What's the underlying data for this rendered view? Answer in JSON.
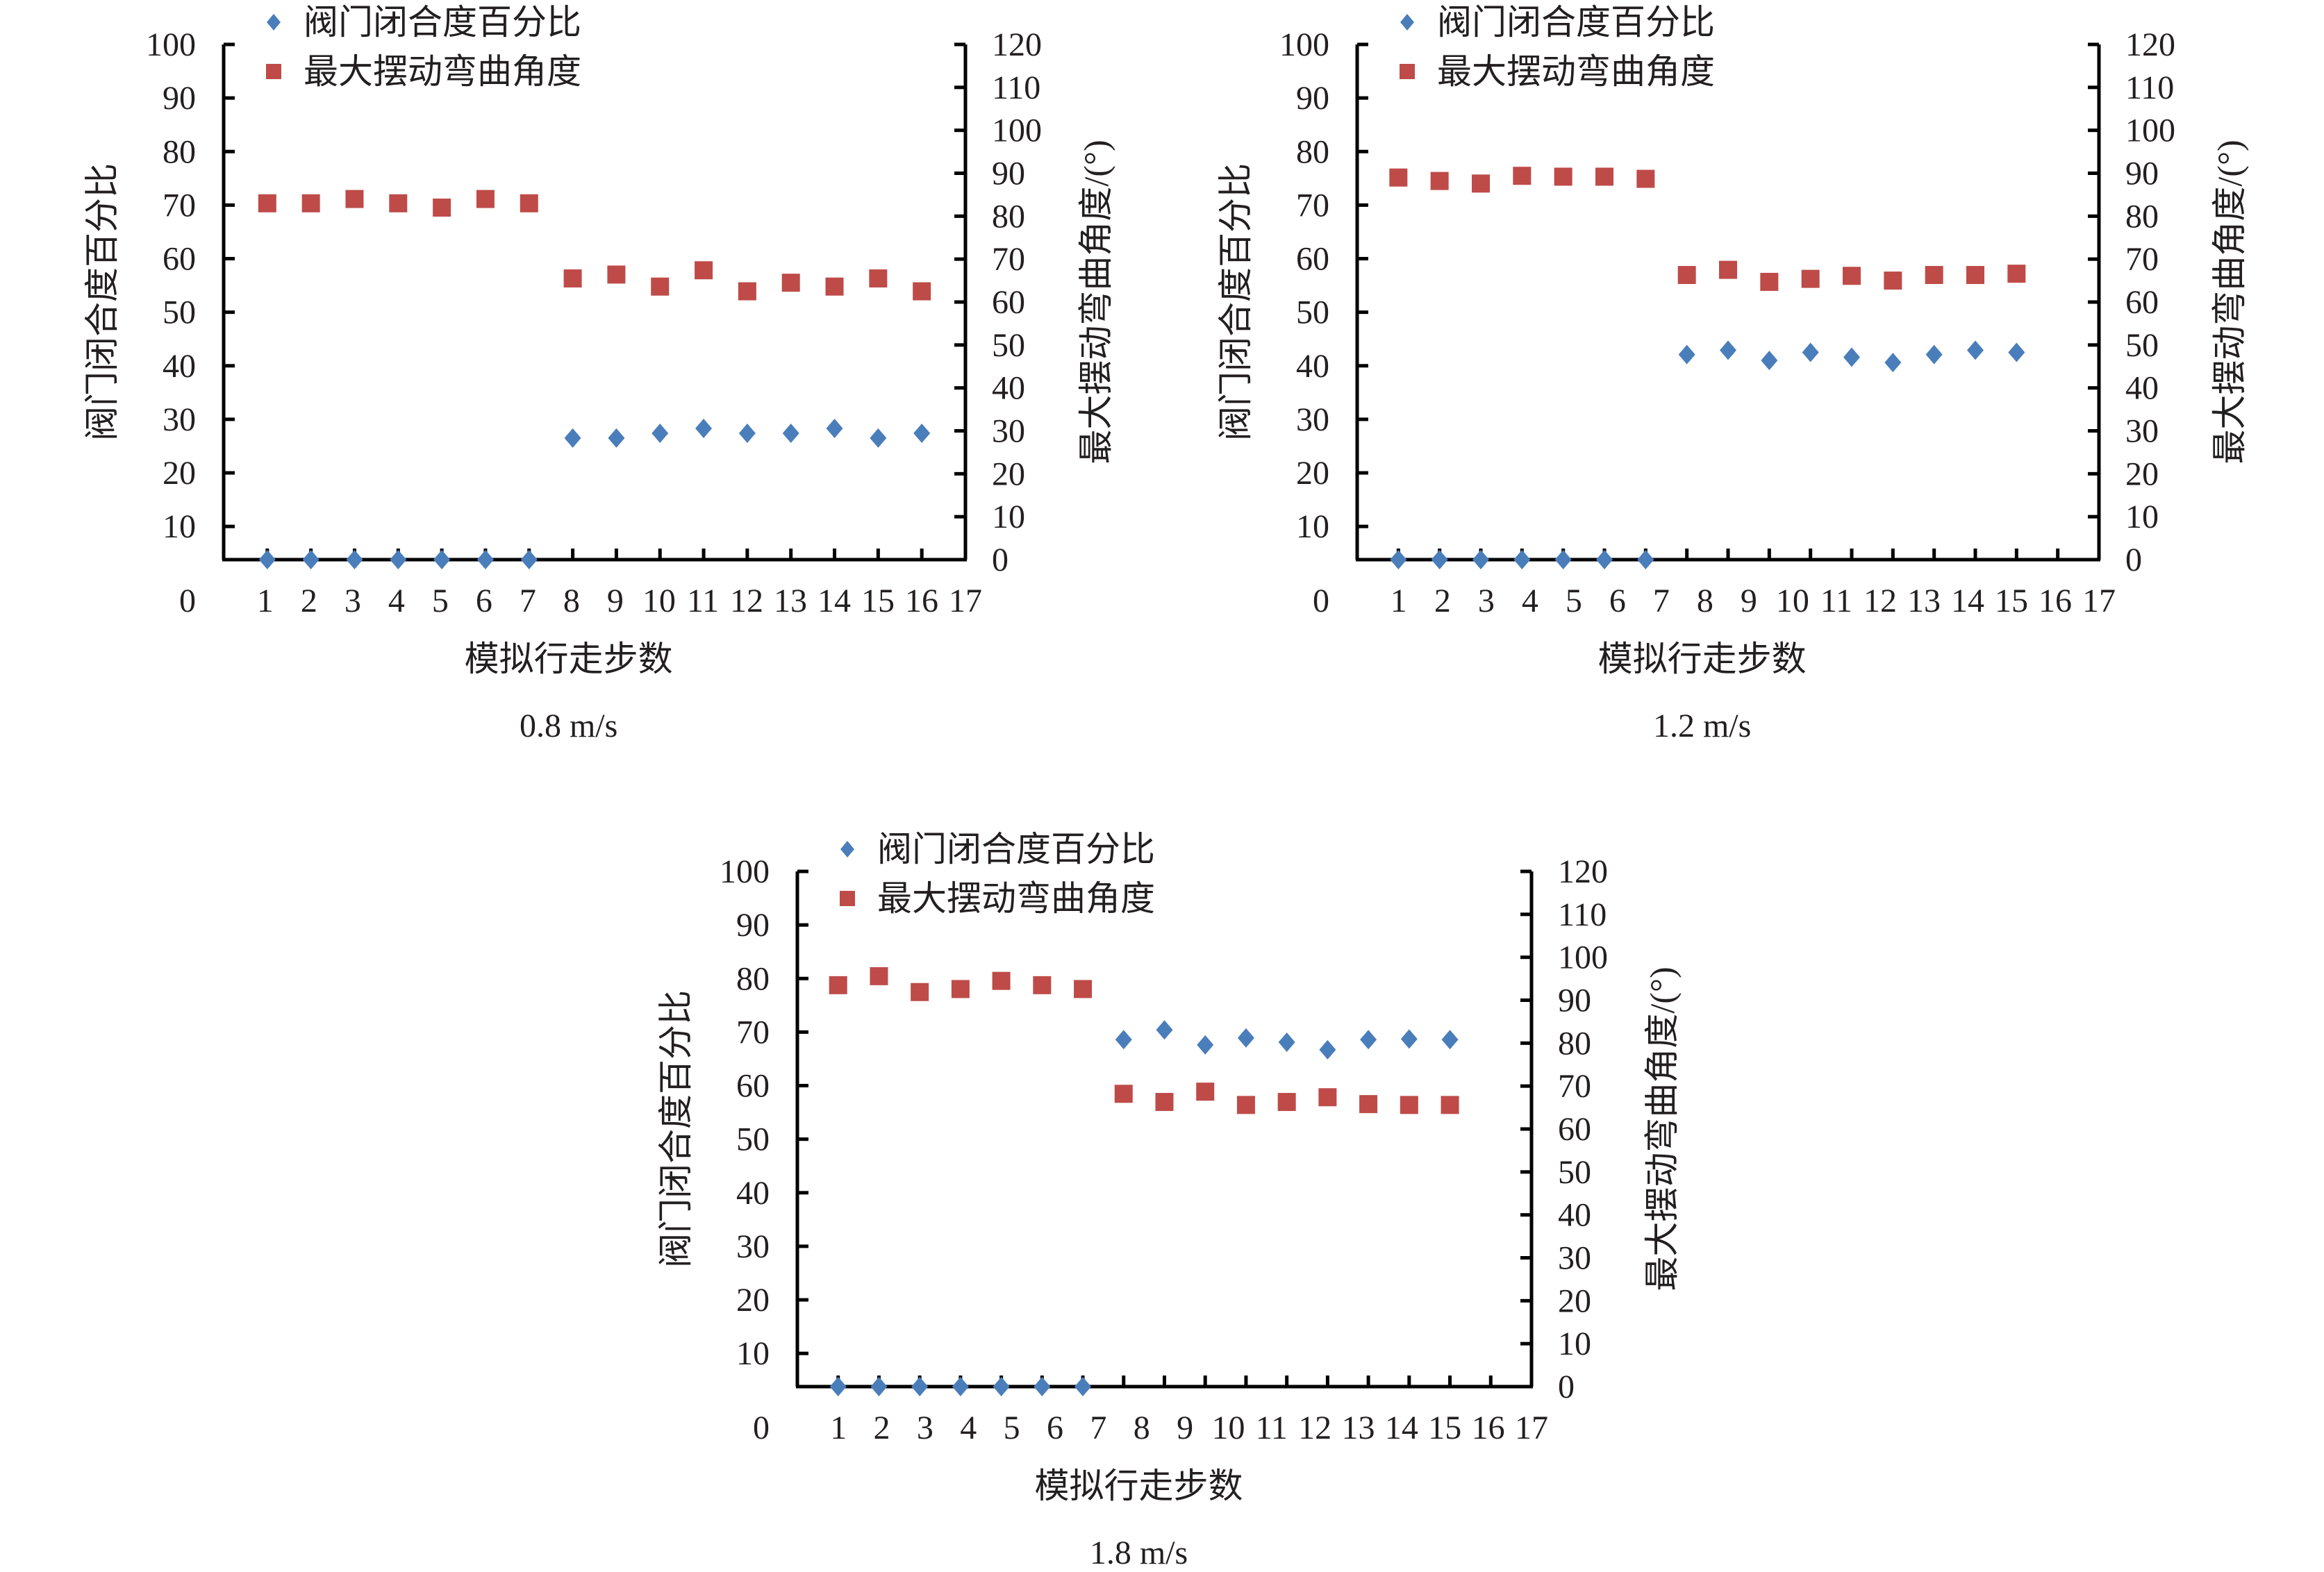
{
  "colors": {
    "valve": "#4a7ebb",
    "angle": "#be4b48",
    "axis": "#000000",
    "text": "#231f20"
  },
  "chart_data": [
    {
      "type": "scatter",
      "title": "0.8 m/s",
      "xlabel": "模拟行走步数",
      "ylabel_left": "阀门闭合度百分比",
      "ylabel_right": "最大摆动弯曲角度/(°)",
      "x_tick_labels": [
        "0",
        "1",
        "2",
        "3",
        "4",
        "5",
        "6",
        "7",
        "8",
        "9",
        "10",
        "11",
        "12",
        "13",
        "14",
        "15",
        "16",
        "17"
      ],
      "y_left_ticks": [
        10,
        20,
        30,
        40,
        50,
        60,
        70,
        80,
        90,
        100
      ],
      "y_left_zero_label": "0",
      "y_right_ticks": [
        0,
        10,
        20,
        30,
        40,
        50,
        60,
        70,
        80,
        90,
        100,
        110,
        120
      ],
      "xlim": [
        0,
        17
      ],
      "ylim_left": [
        3.8,
        100
      ],
      "ylim_right": [
        0,
        120
      ],
      "legend": [
        "阀门闭合度百分比",
        "最大摆动弯曲角度"
      ],
      "legend_position": "top-left",
      "x": [
        1,
        2,
        3,
        4,
        5,
        6,
        7,
        8,
        9,
        10,
        11,
        12,
        13,
        14,
        15,
        16
      ],
      "series": [
        {
          "name": "阀门闭合度百分比",
          "axis": "left",
          "marker": "diamond",
          "values": [
            0,
            0,
            0,
            0,
            0,
            0,
            0,
            26.5,
            26.5,
            27.4,
            28.3,
            27.4,
            27.4,
            28.3,
            26.5,
            27.4
          ]
        },
        {
          "name": "最大摆动弯曲角度",
          "axis": "right",
          "marker": "square",
          "values": [
            83,
            83,
            84,
            83,
            82,
            84,
            83,
            65.5,
            66.4,
            63.6,
            67.4,
            62.5,
            64.5,
            63.6,
            65.5,
            62.5
          ]
        }
      ]
    },
    {
      "type": "scatter",
      "title": "1.2 m/s",
      "xlabel": "模拟行走步数",
      "ylabel_left": "阀门闭合度百分比",
      "ylabel_right": "最大摆动弯曲角度/(°)",
      "x_tick_labels": [
        "0",
        "1",
        "2",
        "3",
        "4",
        "5",
        "6",
        "7",
        "8",
        "9",
        "10",
        "11",
        "12",
        "13",
        "14",
        "15",
        "16",
        "17"
      ],
      "y_left_ticks": [
        10,
        20,
        30,
        40,
        50,
        60,
        70,
        80,
        90,
        100
      ],
      "y_left_zero_label": "0",
      "y_right_ticks": [
        0,
        10,
        20,
        30,
        40,
        50,
        60,
        70,
        80,
        90,
        100,
        110,
        120
      ],
      "xlim": [
        0,
        18
      ],
      "ylim_left": [
        3.8,
        100
      ],
      "ylim_right": [
        0,
        120
      ],
      "legend": [
        "阀门闭合度百分比",
        "最大摆动弯曲角度"
      ],
      "legend_position": "top-left",
      "x": [
        1,
        2,
        3,
        4,
        5,
        6,
        7,
        8,
        9,
        10,
        11,
        12,
        13,
        14,
        15,
        16
      ],
      "series": [
        {
          "name": "阀门闭合度百分比",
          "axis": "left",
          "marker": "diamond",
          "values": [
            0,
            0,
            0,
            0,
            0,
            0,
            0,
            42.1,
            42.9,
            41,
            42.5,
            41.6,
            40.6,
            42.1,
            42.9,
            42.5
          ]
        },
        {
          "name": "最大摆动弯曲角度",
          "axis": "right",
          "marker": "square",
          "values": [
            89,
            88.2,
            87.6,
            89.4,
            89.2,
            89.2,
            88.7,
            66.3,
            67.5,
            64.7,
            65.4,
            66.1,
            65,
            66.3,
            66.3,
            66.6
          ]
        }
      ]
    },
    {
      "type": "scatter",
      "title": "1.8 m/s",
      "xlabel": "模拟行走步数",
      "ylabel_left": "阀门闭合度百分比",
      "ylabel_right": "最大摆动弯曲角度/(°)",
      "x_tick_labels": [
        "0",
        "1",
        "2",
        "3",
        "4",
        "5",
        "6",
        "7",
        "8",
        "9",
        "10",
        "11",
        "12",
        "13",
        "14",
        "15",
        "16",
        "17"
      ],
      "y_left_ticks": [
        10,
        20,
        30,
        40,
        50,
        60,
        70,
        80,
        90,
        100
      ],
      "y_left_zero_label": "0",
      "y_right_ticks": [
        0,
        10,
        20,
        30,
        40,
        50,
        60,
        70,
        80,
        90,
        100,
        110,
        120
      ],
      "xlim": [
        0,
        18
      ],
      "ylim_left": [
        3.8,
        100
      ],
      "ylim_right": [
        0,
        120
      ],
      "legend": [
        "阀门闭合度百分比",
        "最大摆动弯曲角度"
      ],
      "legend_position": "top-left",
      "x": [
        1,
        2,
        3,
        4,
        5,
        6,
        7,
        8,
        9,
        10,
        11,
        12,
        13,
        14,
        15,
        16
      ],
      "series": [
        {
          "name": "阀门闭合度百分比",
          "axis": "left",
          "marker": "diamond",
          "values": [
            0,
            0,
            0,
            0,
            0,
            0,
            0,
            68.6,
            70.4,
            67.6,
            68.9,
            68.1,
            66.7,
            68.6,
            68.7,
            68.6
          ]
        },
        {
          "name": "最大摆动弯曲角度",
          "axis": "right",
          "marker": "square",
          "values": [
            93.5,
            95.6,
            91.9,
            92.6,
            94.5,
            93.5,
            92.6,
            68.2,
            66.3,
            68.7,
            65.6,
            66.3,
            67.4,
            65.8,
            65.6,
            65.6
          ]
        }
      ]
    }
  ]
}
